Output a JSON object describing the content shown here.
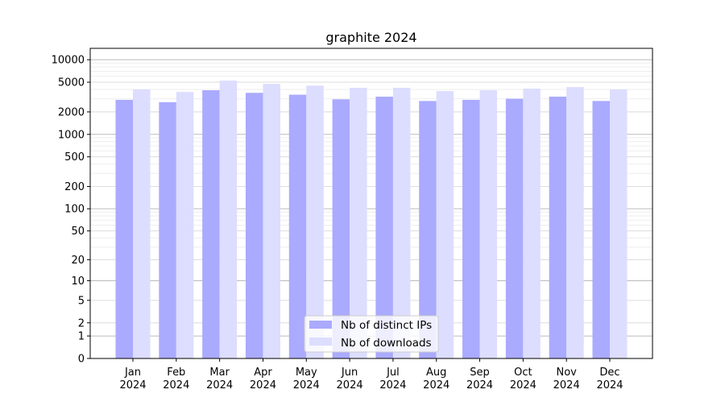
{
  "chart_data": {
    "type": "bar",
    "title": "graphite 2024",
    "xlabel": "",
    "ylabel": "",
    "yscale": "log10(1+y)",
    "ylim": [
      0,
      14200
    ],
    "yticks": [
      0,
      1,
      2,
      5,
      10,
      20,
      50,
      100,
      200,
      500,
      1000,
      2000,
      5000,
      10000
    ],
    "grid": true,
    "legend_position": "bottom-center",
    "categories": [
      "Jan\n2024",
      "Feb\n2024",
      "Mar\n2024",
      "Apr\n2024",
      "May\n2024",
      "Jun\n2024",
      "Jul\n2024",
      "Aug\n2024",
      "Sep\n2024",
      "Oct\n2024",
      "Nov\n2024",
      "Dec\n2024"
    ],
    "series": [
      {
        "name": "Nb of distinct IPs",
        "color": "#aaaaff",
        "values": [
          2900,
          2700,
          3900,
          3600,
          3400,
          2950,
          3200,
          2800,
          2900,
          3000,
          3200,
          2800
        ]
      },
      {
        "name": "Nb of downloads",
        "color": "#ddddff",
        "values": [
          4000,
          3700,
          5250,
          4750,
          4500,
          4200,
          4200,
          3800,
          3900,
          4100,
          4300,
          4000
        ]
      }
    ]
  }
}
